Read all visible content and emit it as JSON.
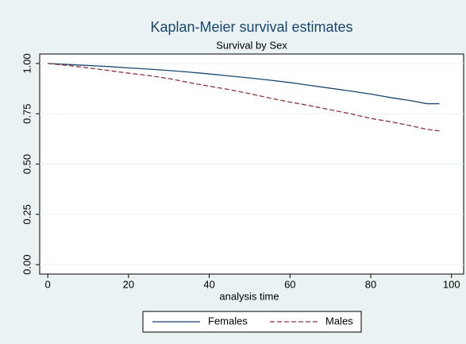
{
  "chart_data": {
    "type": "line",
    "title": "Kaplan-Meier survival estimates",
    "subtitle": "Survival by Sex",
    "x_label": "analysis time",
    "x": [
      0,
      5,
      10,
      15,
      20,
      25,
      30,
      35,
      40,
      45,
      50,
      55,
      60,
      65,
      70,
      75,
      80,
      85,
      90,
      94,
      97
    ],
    "series": [
      {
        "name": "Females",
        "color": "#1a476f",
        "dash": false,
        "values": [
          1,
          0.995,
          0.99,
          0.985,
          0.978,
          0.972,
          0.965,
          0.957,
          0.948,
          0.938,
          0.928,
          0.917,
          0.905,
          0.891,
          0.877,
          0.863,
          0.848,
          0.83,
          0.815,
          0.8,
          0.8
        ]
      },
      {
        "name": "Males",
        "color": "#90353b",
        "dash": true,
        "values": [
          1,
          0.99,
          0.978,
          0.965,
          0.952,
          0.94,
          0.925,
          0.905,
          0.887,
          0.87,
          0.85,
          0.828,
          0.808,
          0.79,
          0.77,
          0.75,
          0.727,
          0.71,
          0.69,
          0.672,
          0.665
        ]
      }
    ],
    "xlim": [
      -2,
      103
    ],
    "xticks": [
      0,
      20,
      40,
      60,
      80,
      100
    ],
    "ylim": [
      -0.047,
      1.047
    ],
    "yticks": [
      {
        "value": 0,
        "label": "0.00"
      },
      {
        "value": 0.25,
        "label": "0.25"
      },
      {
        "value": 0.5,
        "label": "0.50"
      },
      {
        "value": 0.75,
        "label": "0.75"
      },
      {
        "value": 1,
        "label": "1.00"
      }
    ],
    "grid": true,
    "legend": "bottom"
  }
}
